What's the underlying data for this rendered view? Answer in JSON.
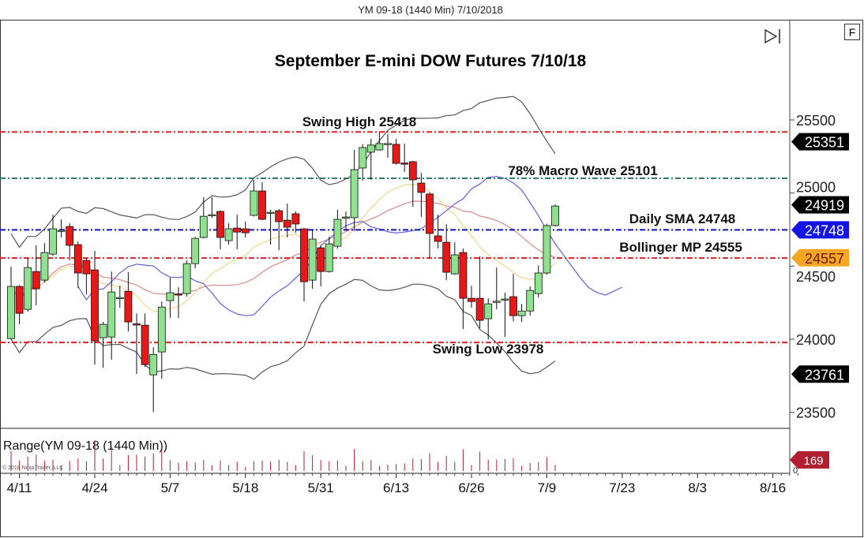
{
  "window_title": "YM 09-18 (1440 Min)  7/10/2018",
  "f_button": "F",
  "copyright": "© 2018 NinjaTrader, LLC",
  "chart_data": {
    "type": "candlestick",
    "title": "September E-mini DOW Futures 7/10/18",
    "instrument": "YM 09-18 (1440 Min)",
    "ylim": [
      23450,
      25900
    ],
    "y_ticks": [
      23500,
      24000,
      24500,
      25000,
      25500
    ],
    "x_ticks": [
      {
        "label": "4/11",
        "bar": 1
      },
      {
        "label": "4/24",
        "bar": 10
      },
      {
        "label": "5/7",
        "bar": 19
      },
      {
        "label": "5/18",
        "bar": 28
      },
      {
        "label": "5/31",
        "bar": 37
      },
      {
        "label": "6/13",
        "bar": 46
      },
      {
        "label": "6/26",
        "bar": 55
      },
      {
        "label": "7/9",
        "bar": 64
      },
      {
        "label": "7/23",
        "bar": 73
      },
      {
        "label": "8/3",
        "bar": 82
      },
      {
        "label": "8/16",
        "bar": 91
      }
    ],
    "ohlc": [
      [
        24004,
        24361,
        24496,
        23999
      ],
      [
        24361,
        24177,
        24370,
        24102
      ],
      [
        24204,
        24490,
        24555,
        24188
      ],
      [
        24463,
        24345,
        24642,
        24231
      ],
      [
        24404,
        24593,
        24658,
        24390
      ],
      [
        24582,
        24755,
        24852,
        24570
      ],
      [
        24739,
        24745,
        24820,
        24696
      ],
      [
        24771,
        24642,
        24793,
        24539
      ],
      [
        24647,
        24453,
        24669,
        24350
      ],
      [
        24539,
        24447,
        24555,
        24307
      ],
      [
        24474,
        23988,
        24604,
        23826
      ],
      [
        24010,
        24102,
        24118,
        23805
      ],
      [
        24015,
        24323,
        24463,
        23859
      ],
      [
        24280,
        24285,
        24366,
        24215
      ],
      [
        24328,
        24118,
        24458,
        24053
      ],
      [
        24105,
        24102,
        24177,
        23761
      ],
      [
        24096,
        23826,
        24177,
        23810
      ],
      [
        23756,
        23896,
        23945,
        23502
      ],
      [
        23913,
        24220,
        24258,
        23729
      ],
      [
        24264,
        24318,
        24420,
        24145
      ],
      [
        24310,
        24307,
        24355,
        24145
      ],
      [
        24312,
        24517,
        24539,
        24291
      ],
      [
        24517,
        24690,
        24700,
        24485
      ],
      [
        24696,
        24841,
        24971,
        24690
      ],
      [
        24850,
        24852,
        24971,
        24830
      ],
      [
        24874,
        24696,
        24880,
        24615
      ],
      [
        24674,
        24755,
        24793,
        24647
      ],
      [
        24760,
        24733,
        24852,
        24615
      ],
      [
        24755,
        24728,
        24804,
        24696
      ],
      [
        24847,
        25014,
        25090,
        24840
      ],
      [
        25014,
        24820,
        25074,
        24815
      ],
      [
        24868,
        24868,
        24885,
        24647
      ],
      [
        24879,
        24804,
        24890,
        24609
      ],
      [
        24814,
        24766,
        24928,
        24696
      ],
      [
        24858,
        24788,
        24874,
        24728
      ],
      [
        24755,
        24393,
        24760,
        24258
      ],
      [
        24404,
        24685,
        24744,
        24345
      ],
      [
        24625,
        24463,
        24640,
        24361
      ],
      [
        24463,
        24652,
        24701,
        24455
      ],
      [
        24636,
        24820,
        24885,
        24620
      ],
      [
        24835,
        24836,
        24874,
        24744
      ],
      [
        24831,
        25160,
        25295,
        24739
      ],
      [
        25171,
        25311,
        25333,
        25084
      ],
      [
        25279,
        25328,
        25371,
        25090
      ],
      [
        25295,
        25338,
        25414,
        25290
      ],
      [
        25338,
        25339,
        25403,
        25241
      ],
      [
        25333,
        25203,
        25371,
        25195
      ],
      [
        25205,
        25203,
        25338,
        25144
      ],
      [
        25214,
        25090,
        25220,
        24906
      ],
      [
        25068,
        25004,
        25138,
        24836
      ],
      [
        24993,
        24723,
        25004,
        24555
      ],
      [
        24707,
        24669,
        24852,
        24620
      ],
      [
        24663,
        24458,
        24787,
        24404
      ],
      [
        24447,
        24577,
        24663,
        24440
      ],
      [
        24593,
        24280,
        24620,
        24069
      ],
      [
        24280,
        24258,
        24366,
        24215
      ],
      [
        24280,
        24129,
        24566,
        24075
      ],
      [
        24140,
        24242,
        24280,
        23999
      ],
      [
        24258,
        24260,
        24490,
        24204
      ],
      [
        24275,
        24275,
        24318,
        24015
      ],
      [
        24291,
        24161,
        24447,
        24123
      ],
      [
        24161,
        24193,
        24242,
        24118
      ],
      [
        24193,
        24334,
        24361,
        24161
      ],
      [
        24312,
        24453,
        24506,
        24285
      ],
      [
        24453,
        24777,
        24790,
        24440
      ],
      [
        24777,
        24911,
        24922,
        24770
      ]
    ],
    "levels": [
      {
        "label": "Swing High 25418",
        "value": 25418,
        "color": "#e02020"
      },
      {
        "label": "78% Macro Wave 25101",
        "value": 25101,
        "color": "#2e7d6a"
      },
      {
        "label": "Daily SMA 24748",
        "value": 24748,
        "color": "#1010c8"
      },
      {
        "label": "Bollinger MP 24555",
        "value": 24555,
        "color": "#e02020"
      },
      {
        "label": "Swing Low 23978",
        "value": 23978,
        "color": "#e02020"
      }
    ],
    "price_markers": [
      {
        "label": "25351",
        "value": 25351,
        "bg": "#000000",
        "fg": "#ffffff"
      },
      {
        "label": "24919",
        "value": 24919,
        "bg": "#000000",
        "fg": "#ffffff"
      },
      {
        "label": "24748",
        "value": 24748,
        "bg": "#1414e6",
        "fg": "#ffffff"
      },
      {
        "label": "24557",
        "value": 24557,
        "bg": "#f5a623",
        "fg": "#6b1a00"
      },
      {
        "label": "23761",
        "value": 23761,
        "bg": "#000000",
        "fg": "#ffffff"
      }
    ],
    "indicator": {
      "label": "Range(YM 09-18 (1440 Min))",
      "current_value": "169",
      "zero_label": "0",
      "color": "#b02030"
    },
    "colors": {
      "up": "#8fe08f",
      "down": "#e81818",
      "bands": "#555555",
      "mid": "#d88a8a",
      "ema": "#f0d68a",
      "blue": "#6060e0"
    }
  }
}
